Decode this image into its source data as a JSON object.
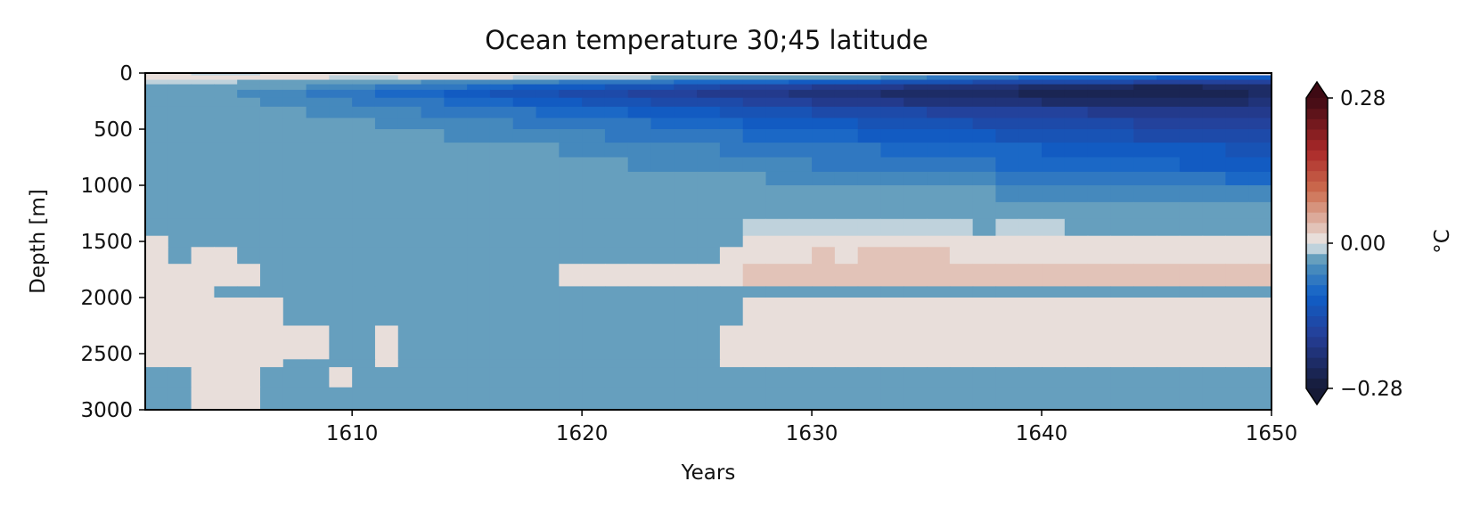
{
  "chart_data": {
    "type": "heatmap",
    "title": "Ocean temperature 30;45 latitude",
    "xlabel": "Years",
    "ylabel": "Depth [m]",
    "xlim": [
      1601,
      1650
    ],
    "ylim": [
      3000,
      0
    ],
    "y_inverted": true,
    "x_ticks": [
      "1610",
      "1620",
      "1630",
      "1640",
      "1650"
    ],
    "x_tick_values": [
      1610,
      1620,
      1630,
      1640,
      1650
    ],
    "y_ticks": [
      "0",
      "500",
      "1000",
      "1500",
      "2000",
      "2500",
      "3000"
    ],
    "y_tick_values": [
      0,
      500,
      1000,
      1500,
      2000,
      2500,
      3000
    ],
    "x_edges": [
      1601,
      1602,
      1603,
      1604,
      1605,
      1606,
      1607,
      1608,
      1609,
      1610,
      1611,
      1612,
      1613,
      1614,
      1615,
      1616,
      1617,
      1618,
      1619,
      1620,
      1621,
      1622,
      1623,
      1624,
      1625,
      1626,
      1627,
      1628,
      1629,
      1630,
      1631,
      1632,
      1633,
      1634,
      1635,
      1636,
      1637,
      1638,
      1639,
      1640,
      1641,
      1642,
      1643,
      1644,
      1645,
      1646,
      1647,
      1648,
      1649,
      1650
    ],
    "depth_edges": [
      0,
      20,
      60,
      100,
      150,
      220,
      300,
      400,
      500,
      620,
      750,
      880,
      1000,
      1150,
      1300,
      1450,
      1550,
      1700,
      1900,
      2000,
      2250,
      2550,
      2620,
      2800,
      3000
    ],
    "temperature_c": [
      [
        0.01,
        0.0,
        -0.01,
        -0.01,
        -0.01,
        0.0,
        0.0,
        0.0,
        0.0,
        0.0,
        0.0,
        0.0,
        0.01,
        0.01,
        0.0,
        0.0,
        0.0,
        0.0,
        0.0,
        0.0,
        0.0,
        0.0,
        0.0,
        0.0,
        0.0,
        0.0,
        0.0,
        0.0,
        0.0,
        0.0,
        0.0,
        0.0,
        0.01,
        0.0,
        0.0,
        0.0,
        0.0,
        0.0,
        0.0,
        0.0,
        0.0,
        0.0,
        0.0,
        0.0,
        0.0,
        0.0,
        0.0,
        0.0,
        0.0
      ],
      [
        0.0,
        0.0,
        0.0,
        0.0,
        0.0,
        0.0,
        0.0,
        0.0,
        -0.01,
        -0.01,
        -0.01,
        0.0,
        0.0,
        0.0,
        0.0,
        0.0,
        -0.01,
        -0.01,
        -0.01,
        -0.01,
        -0.01,
        -0.01,
        -0.02,
        -0.02,
        -0.02,
        -0.02,
        -0.03,
        -0.03,
        -0.03,
        -0.04,
        -0.04,
        -0.04,
        -0.05,
        -0.06,
        -0.07,
        -0.08,
        -0.08,
        -0.08,
        -0.09,
        -0.09,
        -0.09,
        -0.1,
        -0.1,
        -0.1,
        -0.11,
        -0.11,
        -0.11,
        -0.12,
        -0.12
      ],
      [
        -0.01,
        -0.01,
        -0.01,
        -0.01,
        -0.02,
        -0.02,
        -0.02,
        -0.03,
        -0.03,
        -0.04,
        -0.04,
        -0.04,
        -0.05,
        -0.05,
        -0.05,
        -0.06,
        -0.06,
        -0.06,
        -0.07,
        -0.07,
        -0.07,
        -0.08,
        -0.08,
        -0.09,
        -0.09,
        -0.09,
        -0.1,
        -0.1,
        -0.11,
        -0.11,
        -0.12,
        -0.12,
        -0.13,
        -0.13,
        -0.14,
        -0.14,
        -0.15,
        -0.15,
        -0.15,
        -0.16,
        -0.16,
        -0.16,
        -0.16,
        -0.17,
        -0.17,
        -0.17,
        -0.18,
        -0.18,
        -0.18
      ],
      [
        -0.02,
        -0.02,
        -0.02,
        -0.02,
        -0.03,
        -0.03,
        -0.04,
        -0.05,
        -0.05,
        -0.06,
        -0.07,
        -0.07,
        -0.08,
        -0.08,
        -0.09,
        -0.1,
        -0.11,
        -0.11,
        -0.12,
        -0.12,
        -0.13,
        -0.14,
        -0.14,
        -0.15,
        -0.16,
        -0.17,
        -0.17,
        -0.18,
        -0.18,
        -0.19,
        -0.19,
        -0.2,
        -0.2,
        -0.21,
        -0.21,
        -0.22,
        -0.22,
        -0.22,
        -0.23,
        -0.23,
        -0.24,
        -0.24,
        -0.24,
        -0.25,
        -0.25,
        -0.25,
        -0.24,
        -0.24,
        -0.23
      ],
      [
        -0.03,
        -0.03,
        -0.04,
        -0.04,
        -0.05,
        -0.05,
        -0.06,
        -0.07,
        -0.08,
        -0.08,
        -0.09,
        -0.1,
        -0.1,
        -0.11,
        -0.12,
        -0.13,
        -0.13,
        -0.14,
        -0.15,
        -0.15,
        -0.16,
        -0.17,
        -0.17,
        -0.18,
        -0.19,
        -0.19,
        -0.2,
        -0.2,
        -0.21,
        -0.21,
        -0.22,
        -0.22,
        -0.23,
        -0.23,
        -0.23,
        -0.24,
        -0.24,
        -0.24,
        -0.25,
        -0.25,
        -0.25,
        -0.25,
        -0.26,
        -0.26,
        -0.26,
        -0.26,
        -0.25,
        -0.25,
        -0.24
      ],
      [
        -0.03,
        -0.03,
        -0.04,
        -0.04,
        -0.04,
        -0.05,
        -0.05,
        -0.06,
        -0.06,
        -0.07,
        -0.07,
        -0.08,
        -0.08,
        -0.09,
        -0.1,
        -0.1,
        -0.11,
        -0.12,
        -0.12,
        -0.13,
        -0.13,
        -0.14,
        -0.15,
        -0.15,
        -0.16,
        -0.16,
        -0.17,
        -0.18,
        -0.18,
        -0.19,
        -0.19,
        -0.2,
        -0.2,
        -0.21,
        -0.21,
        -0.21,
        -0.22,
        -0.22,
        -0.22,
        -0.23,
        -0.23,
        -0.23,
        -0.23,
        -0.24,
        -0.24,
        -0.24,
        -0.23,
        -0.23,
        -0.22
      ],
      [
        -0.03,
        -0.03,
        -0.03,
        -0.03,
        -0.04,
        -0.04,
        -0.04,
        -0.05,
        -0.05,
        -0.05,
        -0.06,
        -0.06,
        -0.07,
        -0.07,
        -0.08,
        -0.08,
        -0.08,
        -0.09,
        -0.09,
        -0.1,
        -0.1,
        -0.11,
        -0.11,
        -0.12,
        -0.12,
        -0.13,
        -0.13,
        -0.14,
        -0.14,
        -0.15,
        -0.15,
        -0.16,
        -0.16,
        -0.16,
        -0.17,
        -0.17,
        -0.17,
        -0.18,
        -0.18,
        -0.18,
        -0.18,
        -0.19,
        -0.19,
        -0.19,
        -0.19,
        -0.2,
        -0.2,
        -0.2,
        -0.19
      ],
      [
        -0.03,
        -0.03,
        -0.03,
        -0.03,
        -0.03,
        -0.03,
        -0.04,
        -0.04,
        -0.04,
        -0.04,
        -0.05,
        -0.05,
        -0.05,
        -0.06,
        -0.06,
        -0.06,
        -0.07,
        -0.07,
        -0.07,
        -0.08,
        -0.08,
        -0.08,
        -0.09,
        -0.09,
        -0.1,
        -0.1,
        -0.11,
        -0.11,
        -0.11,
        -0.12,
        -0.12,
        -0.13,
        -0.13,
        -0.14,
        -0.14,
        -0.14,
        -0.15,
        -0.15,
        -0.15,
        -0.16,
        -0.16,
        -0.16,
        -0.16,
        -0.17,
        -0.17,
        -0.17,
        -0.18,
        -0.18,
        -0.18
      ],
      [
        -0.02,
        -0.02,
        -0.02,
        -0.02,
        -0.03,
        -0.03,
        -0.03,
        -0.03,
        -0.04,
        -0.04,
        -0.04,
        -0.04,
        -0.04,
        -0.05,
        -0.05,
        -0.05,
        -0.05,
        -0.06,
        -0.06,
        -0.06,
        -0.07,
        -0.07,
        -0.07,
        -0.08,
        -0.08,
        -0.08,
        -0.09,
        -0.09,
        -0.09,
        -0.1,
        -0.1,
        -0.11,
        -0.11,
        -0.11,
        -0.12,
        -0.12,
        -0.12,
        -0.13,
        -0.13,
        -0.13,
        -0.14,
        -0.14,
        -0.14,
        -0.15,
        -0.15,
        -0.15,
        -0.15,
        -0.16,
        -0.16
      ],
      [
        -0.02,
        -0.02,
        -0.02,
        -0.02,
        -0.02,
        -0.02,
        -0.02,
        -0.03,
        -0.03,
        -0.03,
        -0.03,
        -0.03,
        -0.03,
        -0.04,
        -0.04,
        -0.04,
        -0.04,
        -0.04,
        -0.05,
        -0.05,
        -0.05,
        -0.05,
        -0.06,
        -0.06,
        -0.06,
        -0.07,
        -0.07,
        -0.07,
        -0.07,
        -0.08,
        -0.08,
        -0.08,
        -0.09,
        -0.09,
        -0.09,
        -0.1,
        -0.1,
        -0.1,
        -0.1,
        -0.11,
        -0.11,
        -0.11,
        -0.11,
        -0.12,
        -0.12,
        -0.12,
        -0.12,
        -0.13,
        -0.13
      ],
      [
        -0.02,
        -0.02,
        -0.02,
        -0.02,
        -0.02,
        -0.02,
        -0.02,
        -0.02,
        -0.02,
        -0.02,
        -0.03,
        -0.03,
        -0.03,
        -0.03,
        -0.03,
        -0.03,
        -0.04,
        -0.04,
        -0.04,
        -0.04,
        -0.04,
        -0.05,
        -0.05,
        -0.05,
        -0.05,
        -0.06,
        -0.06,
        -0.06,
        -0.06,
        -0.07,
        -0.07,
        -0.07,
        -0.07,
        -0.08,
        -0.08,
        -0.08,
        -0.08,
        -0.09,
        -0.09,
        -0.09,
        -0.09,
        -0.1,
        -0.1,
        -0.1,
        -0.1,
        -0.11,
        -0.11,
        -0.11,
        -0.11
      ],
      [
        -0.02,
        -0.02,
        -0.02,
        -0.02,
        -0.02,
        -0.02,
        -0.02,
        -0.02,
        -0.02,
        -0.02,
        -0.02,
        -0.02,
        -0.02,
        -0.02,
        -0.02,
        -0.03,
        -0.03,
        -0.03,
        -0.03,
        -0.03,
        -0.03,
        -0.03,
        -0.04,
        -0.04,
        -0.04,
        -0.04,
        -0.04,
        -0.05,
        -0.05,
        -0.05,
        -0.05,
        -0.05,
        -0.06,
        -0.06,
        -0.06,
        -0.06,
        -0.06,
        -0.07,
        -0.07,
        -0.07,
        -0.07,
        -0.07,
        -0.08,
        -0.08,
        -0.08,
        -0.08,
        -0.08,
        -0.09,
        -0.09
      ],
      [
        -0.02,
        -0.03,
        -0.02,
        -0.02,
        -0.02,
        -0.02,
        -0.02,
        -0.02,
        -0.02,
        -0.02,
        -0.02,
        -0.02,
        -0.02,
        -0.02,
        -0.02,
        -0.02,
        -0.02,
        -0.02,
        -0.02,
        -0.02,
        -0.02,
        -0.02,
        -0.02,
        -0.03,
        -0.03,
        -0.03,
        -0.03,
        -0.03,
        -0.03,
        -0.03,
        -0.04,
        -0.04,
        -0.04,
        -0.04,
        -0.04,
        -0.04,
        -0.04,
        -0.05,
        -0.05,
        -0.05,
        -0.05,
        -0.05,
        -0.05,
        -0.05,
        -0.06,
        -0.06,
        -0.06,
        -0.06,
        -0.06
      ],
      [
        -0.02,
        -0.02,
        -0.02,
        -0.02,
        -0.02,
        -0.02,
        -0.02,
        -0.02,
        -0.02,
        -0.02,
        -0.02,
        -0.02,
        -0.02,
        -0.02,
        -0.02,
        -0.02,
        -0.02,
        -0.02,
        -0.02,
        -0.02,
        -0.02,
        -0.02,
        -0.02,
        -0.02,
        -0.02,
        -0.02,
        -0.02,
        -0.02,
        -0.02,
        -0.02,
        -0.02,
        -0.02,
        -0.03,
        -0.03,
        -0.03,
        -0.03,
        -0.03,
        -0.03,
        -0.03,
        -0.03,
        -0.03,
        -0.03,
        -0.03,
        -0.03,
        -0.04,
        -0.04,
        -0.04,
        -0.04,
        -0.04
      ],
      [
        -0.02,
        -0.02,
        -0.02,
        -0.02,
        -0.02,
        -0.02,
        -0.02,
        -0.02,
        -0.02,
        -0.02,
        -0.02,
        -0.02,
        -0.02,
        -0.02,
        -0.02,
        -0.02,
        -0.02,
        -0.02,
        -0.02,
        -0.02,
        -0.02,
        -0.02,
        -0.02,
        -0.02,
        -0.02,
        -0.02,
        -0.01,
        -0.01,
        -0.01,
        -0.01,
        -0.01,
        -0.01,
        -0.01,
        -0.01,
        -0.01,
        -0.01,
        -0.02,
        -0.01,
        -0.01,
        -0.01,
        -0.02,
        -0.02,
        -0.02,
        -0.02,
        -0.02,
        -0.02,
        -0.02,
        -0.02,
        -0.02
      ],
      [
        0.0,
        -0.02,
        -0.02,
        -0.02,
        -0.02,
        -0.02,
        -0.02,
        -0.02,
        -0.02,
        -0.02,
        -0.02,
        -0.02,
        -0.02,
        -0.02,
        -0.02,
        -0.02,
        -0.02,
        -0.02,
        -0.02,
        -0.02,
        -0.02,
        -0.02,
        -0.02,
        -0.02,
        -0.02,
        -0.02,
        0.0,
        0.0,
        0.0,
        0.0,
        0.0,
        0.0,
        0.0,
        0.0,
        0.0,
        0.0,
        0.0,
        0.0,
        0.0,
        0.0,
        0.0,
        0.0,
        0.0,
        0.0,
        0.0,
        0.0,
        0.0,
        0.0,
        0.0
      ],
      [
        0.0,
        -0.02,
        0.0,
        0.0,
        -0.02,
        -0.02,
        -0.02,
        -0.02,
        -0.02,
        -0.02,
        -0.02,
        -0.02,
        -0.02,
        -0.02,
        -0.02,
        -0.02,
        -0.02,
        -0.02,
        -0.02,
        -0.02,
        -0.02,
        -0.02,
        -0.02,
        -0.02,
        -0.02,
        0.0,
        0.0,
        0.0,
        0.0,
        0.02,
        0.0,
        0.02,
        0.02,
        0.02,
        0.02,
        0.0,
        0.0,
        0.0,
        0.0,
        0.0,
        0.0,
        0.0,
        0.0,
        0.0,
        0.0,
        0.0,
        0.0,
        0.0,
        0.01
      ],
      [
        0.0,
        0.0,
        0.0,
        0.0,
        0.0,
        -0.02,
        -0.02,
        -0.02,
        -0.02,
        -0.02,
        -0.02,
        -0.02,
        -0.02,
        -0.02,
        -0.02,
        -0.02,
        -0.02,
        -0.02,
        0.0,
        0.0,
        0.0,
        0.0,
        0.0,
        0.0,
        0.0,
        0.0,
        0.02,
        0.02,
        0.02,
        0.02,
        0.02,
        0.02,
        0.02,
        0.03,
        0.03,
        0.02,
        0.02,
        0.02,
        0.02,
        0.02,
        0.02,
        0.02,
        0.02,
        0.02,
        0.02,
        0.02,
        0.02,
        0.02,
        0.02
      ],
      [
        0.0,
        0.0,
        0.0,
        -0.02,
        -0.02,
        -0.02,
        -0.02,
        -0.02,
        -0.02,
        -0.02,
        -0.02,
        -0.02,
        -0.02,
        -0.02,
        -0.02,
        -0.02,
        -0.02,
        -0.02,
        -0.02,
        -0.02,
        -0.02,
        -0.02,
        -0.02,
        -0.02,
        -0.02,
        -0.02,
        -0.02,
        -0.02,
        -0.02,
        -0.02,
        -0.02,
        -0.02,
        -0.02,
        -0.02,
        -0.02,
        -0.02,
        -0.02,
        -0.02,
        -0.02,
        -0.02,
        -0.02,
        -0.02,
        -0.02,
        -0.02,
        -0.02,
        -0.02,
        -0.02,
        -0.02,
        -0.02
      ],
      [
        0.0,
        0.0,
        0.0,
        0.0,
        0.0,
        0.0,
        -0.02,
        -0.02,
        -0.02,
        -0.02,
        -0.02,
        -0.02,
        -0.02,
        -0.02,
        -0.02,
        -0.02,
        -0.02,
        -0.02,
        -0.02,
        -0.02,
        -0.02,
        -0.02,
        -0.02,
        -0.02,
        -0.02,
        -0.02,
        0.0,
        0.0,
        0.0,
        0.0,
        0.0,
        0.0,
        0.0,
        0.0,
        0.0,
        0.0,
        0.0,
        0.0,
        0.0,
        0.0,
        0.0,
        0.0,
        0.0,
        0.0,
        0.0,
        0.0,
        0.0,
        0.0,
        0.0
      ],
      [
        0.0,
        0.0,
        0.0,
        0.0,
        0.0,
        0.0,
        0.0,
        0.0,
        -0.02,
        -0.02,
        0.0,
        -0.02,
        -0.02,
        -0.02,
        -0.02,
        -0.02,
        -0.02,
        -0.02,
        -0.02,
        -0.02,
        -0.02,
        -0.02,
        -0.02,
        -0.02,
        -0.02,
        0.0,
        0.0,
        0.0,
        0.0,
        0.0,
        0.0,
        0.0,
        0.0,
        0.0,
        0.0,
        0.0,
        0.0,
        0.0,
        0.0,
        0.0,
        0.0,
        0.0,
        0.0,
        0.0,
        0.0,
        0.0,
        0.0,
        0.0,
        0.0
      ],
      [
        0.0,
        0.0,
        0.0,
        0.0,
        0.0,
        0.0,
        -0.02,
        -0.02,
        -0.02,
        -0.02,
        0.0,
        -0.02,
        -0.02,
        -0.02,
        -0.02,
        -0.02,
        -0.02,
        -0.02,
        -0.02,
        -0.02,
        -0.02,
        -0.02,
        -0.02,
        -0.02,
        -0.02,
        0.0,
        0.0,
        0.0,
        0.0,
        0.0,
        0.0,
        0.0,
        0.0,
        0.0,
        0.0,
        0.0,
        0.0,
        0.0,
        0.0,
        0.0,
        0.0,
        0.0,
        0.0,
        0.0,
        0.0,
        0.0,
        0.0,
        0.0,
        0.0
      ],
      [
        -0.02,
        -0.02,
        0.0,
        0.0,
        0.0,
        -0.02,
        -0.02,
        -0.02,
        0.0,
        -0.02,
        -0.02,
        -0.02,
        -0.02,
        -0.02,
        -0.02,
        -0.02,
        -0.02,
        -0.02,
        -0.02,
        -0.02,
        -0.02,
        -0.02,
        -0.02,
        -0.02,
        -0.02,
        -0.03,
        -0.03,
        -0.03,
        -0.03,
        -0.03,
        -0.03,
        -0.03,
        -0.02,
        -0.02,
        -0.02,
        -0.02,
        -0.03,
        -0.02,
        -0.02,
        -0.02,
        -0.02,
        -0.02,
        -0.02,
        -0.02,
        -0.02,
        -0.02,
        -0.02,
        -0.02,
        -0.02
      ],
      [
        -0.02,
        -0.02,
        0.0,
        0.0,
        0.0,
        -0.02,
        -0.02,
        -0.02,
        -0.02,
        -0.02,
        -0.02,
        -0.02,
        -0.02,
        -0.02,
        -0.02,
        -0.02,
        -0.02,
        -0.02,
        -0.02,
        -0.03,
        -0.03,
        -0.03,
        -0.03,
        -0.03,
        -0.03,
        -0.03,
        -0.03,
        -0.03,
        -0.03,
        -0.03,
        -0.03,
        -0.03,
        -0.03,
        -0.04,
        -0.04,
        -0.04,
        -0.04,
        -0.04,
        -0.04,
        -0.04,
        -0.04,
        -0.04,
        -0.04,
        -0.04,
        -0.04,
        -0.04,
        -0.04,
        -0.04,
        -0.04
      ]
    ],
    "colorbar": {
      "label": "°C",
      "min": -0.28,
      "max": 0.28,
      "ticks": [
        "−0.28",
        "0.00",
        "0.28"
      ],
      "tick_values": [
        -0.28,
        0.0,
        0.28
      ],
      "extend": "both",
      "levels": 28
    }
  }
}
